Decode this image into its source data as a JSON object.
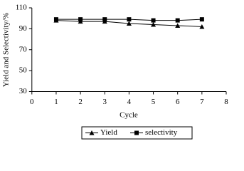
{
  "chart_data": {
    "type": "line",
    "x_label": "Cycle",
    "y_label": "Yield and Selectivity/%",
    "x": [
      1,
      2,
      3,
      4,
      5,
      6,
      7
    ],
    "series": [
      {
        "name": "Yield",
        "color": "#000000",
        "marker": "triangle",
        "values": [
          98,
          97,
          97,
          95,
          94,
          93,
          92
        ]
      },
      {
        "name": "selectivity",
        "color": "#000000",
        "marker": "square",
        "values": [
          99,
          99,
          99,
          99,
          98,
          98,
          99
        ]
      }
    ],
    "xlim": [
      0,
      8
    ],
    "xticks": [
      0,
      1,
      2,
      3,
      4,
      5,
      6,
      7,
      8
    ],
    "ylim": [
      30,
      110
    ],
    "yticks": [
      30,
      50,
      70,
      90,
      110
    ],
    "grid": false,
    "legend": "bottom"
  }
}
